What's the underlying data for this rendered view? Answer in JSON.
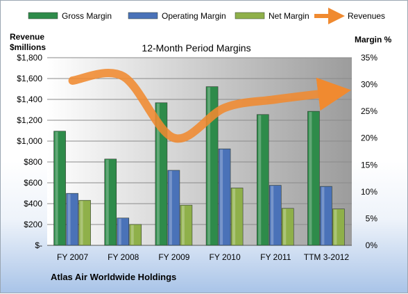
{
  "chart_data": {
    "type": "bar",
    "title": "12-Month Period Margins",
    "company": "Atlas Air Worldwide Holdings",
    "ylabel_left": [
      "Revenue",
      "$millions"
    ],
    "ylabel_right": "Margin %",
    "categories": [
      "FY 2007",
      "FY 2008",
      "FY 2009",
      "FY 2010",
      "FY 2011",
      "TTM 3-2012"
    ],
    "y_left_ticks": [
      "$-",
      "$200",
      "$400",
      "$600",
      "$800",
      "$1,000",
      "$1,200",
      "$1,400",
      "$1,600",
      "$1,800"
    ],
    "y_right_ticks": [
      "0%",
      "5%",
      "10%",
      "15%",
      "20%",
      "25%",
      "30%",
      "35%"
    ],
    "ylim_left": [
      0,
      1800
    ],
    "ylim_right": [
      0,
      35
    ],
    "series": [
      {
        "name": "Gross Margin",
        "axis": "right",
        "kind": "bar",
        "color": "#2e8b4a",
        "values": [
          21.3,
          16.1,
          26.6,
          29.6,
          24.4,
          25.0
        ]
      },
      {
        "name": "Operating Margin",
        "axis": "right",
        "kind": "bar",
        "color": "#4a72b8",
        "values": [
          9.7,
          5.1,
          14.0,
          18.0,
          11.2,
          11.0
        ]
      },
      {
        "name": "Net Margin",
        "axis": "right",
        "kind": "bar",
        "color": "#8fb04a",
        "values": [
          8.4,
          3.9,
          7.5,
          10.7,
          6.9,
          6.8
        ]
      },
      {
        "name": "Revenues",
        "axis": "left",
        "kind": "line",
        "color": "#f08a30",
        "values": [
          1580,
          1620,
          1030,
          1320,
          1400,
          1460
        ]
      }
    ],
    "grid": true,
    "legend": "top"
  }
}
